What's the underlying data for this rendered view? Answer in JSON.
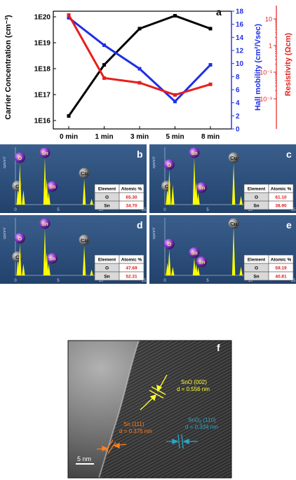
{
  "colors": {
    "carrier": "#000000",
    "mobility": "#1f2fe6",
    "resistivity": "#e61e1e",
    "eds_bg": "#2c4e7b",
    "spectrum": "#ffff00",
    "tem_arrow_sno": "#ffff33",
    "tem_arrow_sn": "#ff7f1f",
    "tem_arrow_sno2": "#2aa6c9"
  },
  "chart_data": [
    {
      "type": "line",
      "panel_label": "a",
      "categories": [
        "0 min",
        "1 min",
        "3 min",
        "5 min",
        "8 min"
      ],
      "ylabel": "Carrier Concentration (cm⁻³)",
      "y2label": "Hall mobility (cm²/Vsec)",
      "y3label": "Resistivity (Ωcm)",
      "y_ticks": [
        "1E16",
        "1E17",
        "1E18",
        "1E19",
        "1E20"
      ],
      "y_tick_exponents": [
        16,
        17,
        18,
        19,
        20
      ],
      "y2_ticks": [
        "0",
        "2",
        "4",
        "6",
        "8",
        "10",
        "12",
        "14",
        "16",
        "18"
      ],
      "y2lim": [
        0,
        18
      ],
      "y3_ticks": [
        "10⁻²",
        "10⁻¹",
        "1",
        "10"
      ],
      "y3_tick_exponents": [
        -2,
        -1,
        0,
        1
      ],
      "series": [
        {
          "axis": "left",
          "log": true,
          "values": [
            1.5e+16,
            1.4e+18,
            3.5e+19,
            1.1e+20,
            3.5e+19
          ]
        },
        {
          "axis": "right",
          "log": false,
          "values": [
            17.0,
            12.8,
            9.2,
            4.2,
            9.8
          ]
        },
        {
          "axis": "right2",
          "log": true,
          "values": [
            14.0,
            0.06,
            0.04,
            0.014,
            0.035
          ]
        }
      ]
    },
    {
      "type": "bar",
      "panel_label": "b",
      "ylabel": "cps/eV",
      "x_ticks": [
        "0",
        "5",
        "10",
        "15"
      ],
      "peaks": [
        {
          "x": 0.3,
          "h": 0.3,
          "label": "C"
        },
        {
          "x": 0.52,
          "h": 0.72,
          "label": "O"
        },
        {
          "x": 0.93,
          "h": 0.25,
          "label": ""
        },
        {
          "x": 3.44,
          "h": 0.82,
          "label": "Sn"
        },
        {
          "x": 3.66,
          "h": 0.45,
          "label": ""
        },
        {
          "x": 3.9,
          "h": 0.22,
          "label": "Sn"
        },
        {
          "x": 8.04,
          "h": 0.45,
          "label": "Cu"
        },
        {
          "x": 8.9,
          "h": 0.1,
          "label": ""
        }
      ],
      "table": {
        "headers": [
          "Element",
          "Atomic %"
        ],
        "rows": [
          [
            "O",
            "65.30"
          ],
          [
            "Sn",
            "34.70"
          ]
        ]
      }
    },
    {
      "type": "bar",
      "panel_label": "c",
      "ylabel": "cps/eV",
      "x_ticks": [
        "0",
        "5",
        "10",
        "15"
      ],
      "peaks": [
        {
          "x": 0.3,
          "h": 0.3,
          "label": "C"
        },
        {
          "x": 0.52,
          "h": 0.6,
          "label": "O"
        },
        {
          "x": 0.93,
          "h": 0.35,
          "label": ""
        },
        {
          "x": 3.44,
          "h": 0.82,
          "label": "Sn"
        },
        {
          "x": 3.66,
          "h": 0.4,
          "label": ""
        },
        {
          "x": 3.9,
          "h": 0.2,
          "label": "Sn"
        },
        {
          "x": 8.04,
          "h": 0.72,
          "label": "Cu"
        },
        {
          "x": 8.9,
          "h": 0.15,
          "label": ""
        }
      ],
      "table": {
        "headers": [
          "Element",
          "Atomic %"
        ],
        "rows": [
          [
            "O",
            "61.10"
          ],
          [
            "Sn",
            "38.90"
          ]
        ]
      }
    },
    {
      "type": "bar",
      "panel_label": "d",
      "ylabel": "cps/eV",
      "x_ticks": [
        "0",
        "5",
        "10",
        "15"
      ],
      "peaks": [
        {
          "x": 0.3,
          "h": 0.3,
          "label": "C"
        },
        {
          "x": 0.52,
          "h": 0.55,
          "label": "O"
        },
        {
          "x": 0.93,
          "h": 0.2,
          "label": ""
        },
        {
          "x": 3.44,
          "h": 0.82,
          "label": "Sn"
        },
        {
          "x": 3.66,
          "h": 0.4,
          "label": ""
        },
        {
          "x": 3.9,
          "h": 0.2,
          "label": "Sn"
        },
        {
          "x": 8.04,
          "h": 0.52,
          "label": "Cu"
        },
        {
          "x": 8.9,
          "h": 0.1,
          "label": ""
        }
      ],
      "table": {
        "headers": [
          "Element",
          "Atomic %"
        ],
        "rows": [
          [
            "O",
            "47.69"
          ],
          [
            "Sn",
            "52.31"
          ]
        ]
      }
    },
    {
      "type": "bar",
      "panel_label": "e",
      "ylabel": "cps/eV",
      "x_ticks": [
        "0",
        "5",
        "10",
        "15"
      ],
      "peaks": [
        {
          "x": 0.3,
          "h": 0.22,
          "label": ""
        },
        {
          "x": 0.52,
          "h": 0.45,
          "label": "O"
        },
        {
          "x": 0.93,
          "h": 0.15,
          "label": ""
        },
        {
          "x": 3.44,
          "h": 0.3,
          "label": "Sn"
        },
        {
          "x": 3.66,
          "h": 0.2,
          "label": ""
        },
        {
          "x": 3.9,
          "h": 0.14,
          "label": "Sn"
        },
        {
          "x": 8.04,
          "h": 0.86,
          "label": "Cu"
        },
        {
          "x": 8.9,
          "h": 0.15,
          "label": ""
        }
      ],
      "table": {
        "headers": [
          "Element",
          "Atomic %"
        ],
        "rows": [
          [
            "O",
            "59.19"
          ],
          [
            "Sn",
            "40.81"
          ]
        ]
      }
    }
  ],
  "tem": {
    "panel_label": "f",
    "annotations": {
      "sno_line1": "SnO (002)",
      "sno_line2": "d = 0.556 nm",
      "sno2_line1": "SnO",
      "sno2_sub": "2",
      "sno2_line1b": " (110)",
      "sno2_line2": "d = 0.334 nm",
      "sn_line1": "Sn (111)",
      "sn_line2": "d = 0.375 nm",
      "scale": "5 nm"
    }
  }
}
